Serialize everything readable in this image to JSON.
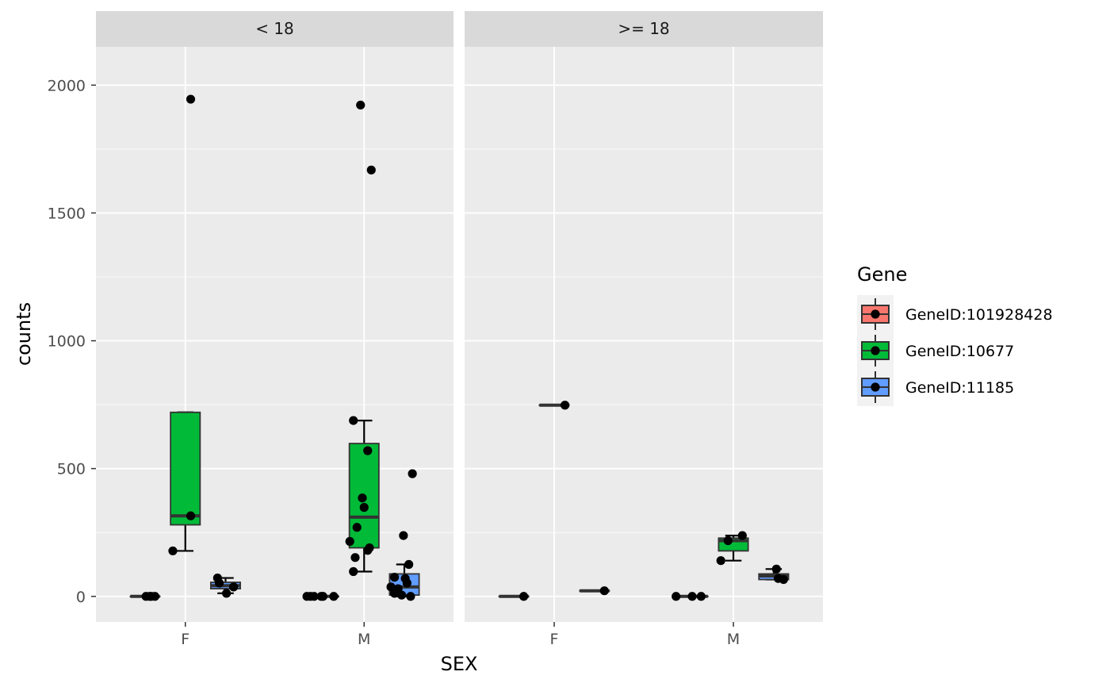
{
  "chart_data": {
    "type": "box",
    "facets": [
      "< 18",
      ">= 18"
    ],
    "categories": [
      "F",
      "M"
    ],
    "xlabel": "SEX",
    "ylabel": "counts",
    "ylim": [
      -100,
      2150
    ],
    "y_ticks": [
      0,
      500,
      1000,
      1500,
      2000
    ],
    "y_tick_labels": [
      "0",
      "500",
      "1000",
      "1500",
      "2000"
    ],
    "grid": true,
    "legend": {
      "title": "Gene",
      "position": "right",
      "entries": [
        {
          "label": "GeneID:101928428",
          "color": "#F8766D"
        },
        {
          "label": "GeneID:10677",
          "color": "#00BA38"
        },
        {
          "label": "GeneID:11185",
          "color": "#619CFF"
        }
      ]
    },
    "boxes": [
      {
        "facet": 0,
        "category": 0,
        "gene": 0,
        "q1": 0,
        "median": 0,
        "q3": 0,
        "whisker_low": 0,
        "whisker_high": 0
      },
      {
        "facet": 0,
        "category": 0,
        "gene": 1,
        "q1": 280,
        "median": 315,
        "q3": 720,
        "whisker_low": 178,
        "whisker_high": 720
      },
      {
        "facet": 0,
        "category": 0,
        "gene": 2,
        "q1": 30,
        "median": 42,
        "q3": 55,
        "whisker_low": 12,
        "whisker_high": 72
      },
      {
        "facet": 0,
        "category": 1,
        "gene": 0,
        "q1": 0,
        "median": 0,
        "q3": 0,
        "whisker_low": 0,
        "whisker_high": 0
      },
      {
        "facet": 0,
        "category": 1,
        "gene": 1,
        "q1": 190,
        "median": 310,
        "q3": 598,
        "whisker_low": 97,
        "whisker_high": 688
      },
      {
        "facet": 0,
        "category": 1,
        "gene": 2,
        "q1": 5,
        "median": 37,
        "q3": 88,
        "whisker_low": 0,
        "whisker_high": 125
      },
      {
        "facet": 1,
        "category": 0,
        "gene": 0,
        "q1": 0,
        "median": 0,
        "q3": 0,
        "whisker_low": 0,
        "whisker_high": 0
      },
      {
        "facet": 1,
        "category": 0,
        "gene": 1,
        "q1": 748,
        "median": 748,
        "q3": 748,
        "whisker_low": 748,
        "whisker_high": 748
      },
      {
        "facet": 1,
        "category": 0,
        "gene": 2,
        "q1": 22,
        "median": 22,
        "q3": 22,
        "whisker_low": 22,
        "whisker_high": 22
      },
      {
        "facet": 1,
        "category": 1,
        "gene": 0,
        "q1": 0,
        "median": 0,
        "q3": 0,
        "whisker_low": 0,
        "whisker_high": 0
      },
      {
        "facet": 1,
        "category": 1,
        "gene": 1,
        "q1": 178,
        "median": 218,
        "q3": 228,
        "whisker_low": 140,
        "whisker_high": 238
      },
      {
        "facet": 1,
        "category": 1,
        "gene": 2,
        "q1": 66,
        "median": 80,
        "q3": 88,
        "whisker_low": 66,
        "whisker_high": 107
      }
    ],
    "points": [
      {
        "facet": 0,
        "category": 0,
        "gene": 0,
        "jitter": -0.22,
        "y": 0
      },
      {
        "facet": 0,
        "category": 0,
        "gene": 0,
        "jitter": -0.2,
        "y": 0
      },
      {
        "facet": 0,
        "category": 0,
        "gene": 0,
        "jitter": -0.19,
        "y": 0
      },
      {
        "facet": 0,
        "category": 0,
        "gene": 0,
        "jitter": -0.17,
        "y": 0
      },
      {
        "facet": 0,
        "category": 0,
        "gene": 1,
        "jitter": -0.07,
        "y": 178
      },
      {
        "facet": 0,
        "category": 0,
        "gene": 1,
        "jitter": 0.03,
        "y": 315
      },
      {
        "facet": 0,
        "category": 0,
        "gene": 1,
        "jitter": 0.03,
        "y": 1945
      },
      {
        "facet": 0,
        "category": 0,
        "gene": 2,
        "jitter": 0.18,
        "y": 72
      },
      {
        "facet": 0,
        "category": 0,
        "gene": 2,
        "jitter": 0.19,
        "y": 52
      },
      {
        "facet": 0,
        "category": 0,
        "gene": 2,
        "jitter": 0.23,
        "y": 12
      },
      {
        "facet": 0,
        "category": 0,
        "gene": 2,
        "jitter": 0.27,
        "y": 37
      },
      {
        "facet": 0,
        "category": 1,
        "gene": 0,
        "jitter": -0.32,
        "y": 0
      },
      {
        "facet": 0,
        "category": 1,
        "gene": 0,
        "jitter": -0.3,
        "y": 0
      },
      {
        "facet": 0,
        "category": 1,
        "gene": 0,
        "jitter": -0.28,
        "y": 0
      },
      {
        "facet": 0,
        "category": 1,
        "gene": 0,
        "jitter": -0.24,
        "y": 0
      },
      {
        "facet": 0,
        "category": 1,
        "gene": 0,
        "jitter": -0.23,
        "y": 0
      },
      {
        "facet": 0,
        "category": 1,
        "gene": 0,
        "jitter": -0.17,
        "y": 0
      },
      {
        "facet": 0,
        "category": 1,
        "gene": 1,
        "jitter": -0.08,
        "y": 215
      },
      {
        "facet": 0,
        "category": 1,
        "gene": 1,
        "jitter": -0.06,
        "y": 97
      },
      {
        "facet": 0,
        "category": 1,
        "gene": 1,
        "jitter": -0.06,
        "y": 688
      },
      {
        "facet": 0,
        "category": 1,
        "gene": 1,
        "jitter": -0.05,
        "y": 152
      },
      {
        "facet": 0,
        "category": 1,
        "gene": 1,
        "jitter": -0.04,
        "y": 270
      },
      {
        "facet": 0,
        "category": 1,
        "gene": 1,
        "jitter": -0.02,
        "y": 1922
      },
      {
        "facet": 0,
        "category": 1,
        "gene": 1,
        "jitter": -0.01,
        "y": 385
      },
      {
        "facet": 0,
        "category": 1,
        "gene": 1,
        "jitter": -0.0,
        "y": 348
      },
      {
        "facet": 0,
        "category": 1,
        "gene": 1,
        "jitter": 0.02,
        "y": 180
      },
      {
        "facet": 0,
        "category": 1,
        "gene": 1,
        "jitter": 0.02,
        "y": 570
      },
      {
        "facet": 0,
        "category": 1,
        "gene": 1,
        "jitter": 0.03,
        "y": 190
      },
      {
        "facet": 0,
        "category": 1,
        "gene": 1,
        "jitter": 0.04,
        "y": 1668
      },
      {
        "facet": 0,
        "category": 1,
        "gene": 2,
        "jitter": 0.15,
        "y": 37
      },
      {
        "facet": 0,
        "category": 1,
        "gene": 2,
        "jitter": 0.17,
        "y": 12
      },
      {
        "facet": 0,
        "category": 1,
        "gene": 2,
        "jitter": 0.17,
        "y": 75
      },
      {
        "facet": 0,
        "category": 1,
        "gene": 2,
        "jitter": 0.19,
        "y": 30
      },
      {
        "facet": 0,
        "category": 1,
        "gene": 2,
        "jitter": 0.21,
        "y": 5
      },
      {
        "facet": 0,
        "category": 1,
        "gene": 2,
        "jitter": 0.22,
        "y": 238
      },
      {
        "facet": 0,
        "category": 1,
        "gene": 2,
        "jitter": 0.23,
        "y": 70
      },
      {
        "facet": 0,
        "category": 1,
        "gene": 2,
        "jitter": 0.24,
        "y": 52
      },
      {
        "facet": 0,
        "category": 1,
        "gene": 2,
        "jitter": 0.25,
        "y": 125
      },
      {
        "facet": 0,
        "category": 1,
        "gene": 2,
        "jitter": 0.26,
        "y": 0
      },
      {
        "facet": 0,
        "category": 1,
        "gene": 2,
        "jitter": 0.27,
        "y": 480
      },
      {
        "facet": 1,
        "category": 0,
        "gene": 0,
        "jitter": -0.17,
        "y": 0
      },
      {
        "facet": 1,
        "category": 0,
        "gene": 1,
        "jitter": 0.06,
        "y": 748
      },
      {
        "facet": 1,
        "category": 0,
        "gene": 2,
        "jitter": 0.28,
        "y": 22
      },
      {
        "facet": 1,
        "category": 1,
        "gene": 0,
        "jitter": -0.32,
        "y": 0
      },
      {
        "facet": 1,
        "category": 1,
        "gene": 0,
        "jitter": -0.23,
        "y": 0
      },
      {
        "facet": 1,
        "category": 1,
        "gene": 0,
        "jitter": -0.18,
        "y": 0
      },
      {
        "facet": 1,
        "category": 1,
        "gene": 1,
        "jitter": -0.07,
        "y": 140
      },
      {
        "facet": 1,
        "category": 1,
        "gene": 1,
        "jitter": -0.03,
        "y": 218
      },
      {
        "facet": 1,
        "category": 1,
        "gene": 1,
        "jitter": 0.05,
        "y": 238
      },
      {
        "facet": 1,
        "category": 1,
        "gene": 2,
        "jitter": 0.24,
        "y": 107
      },
      {
        "facet": 1,
        "category": 1,
        "gene": 2,
        "jitter": 0.25,
        "y": 70
      },
      {
        "facet": 1,
        "category": 1,
        "gene": 2,
        "jitter": 0.28,
        "y": 66
      }
    ]
  }
}
